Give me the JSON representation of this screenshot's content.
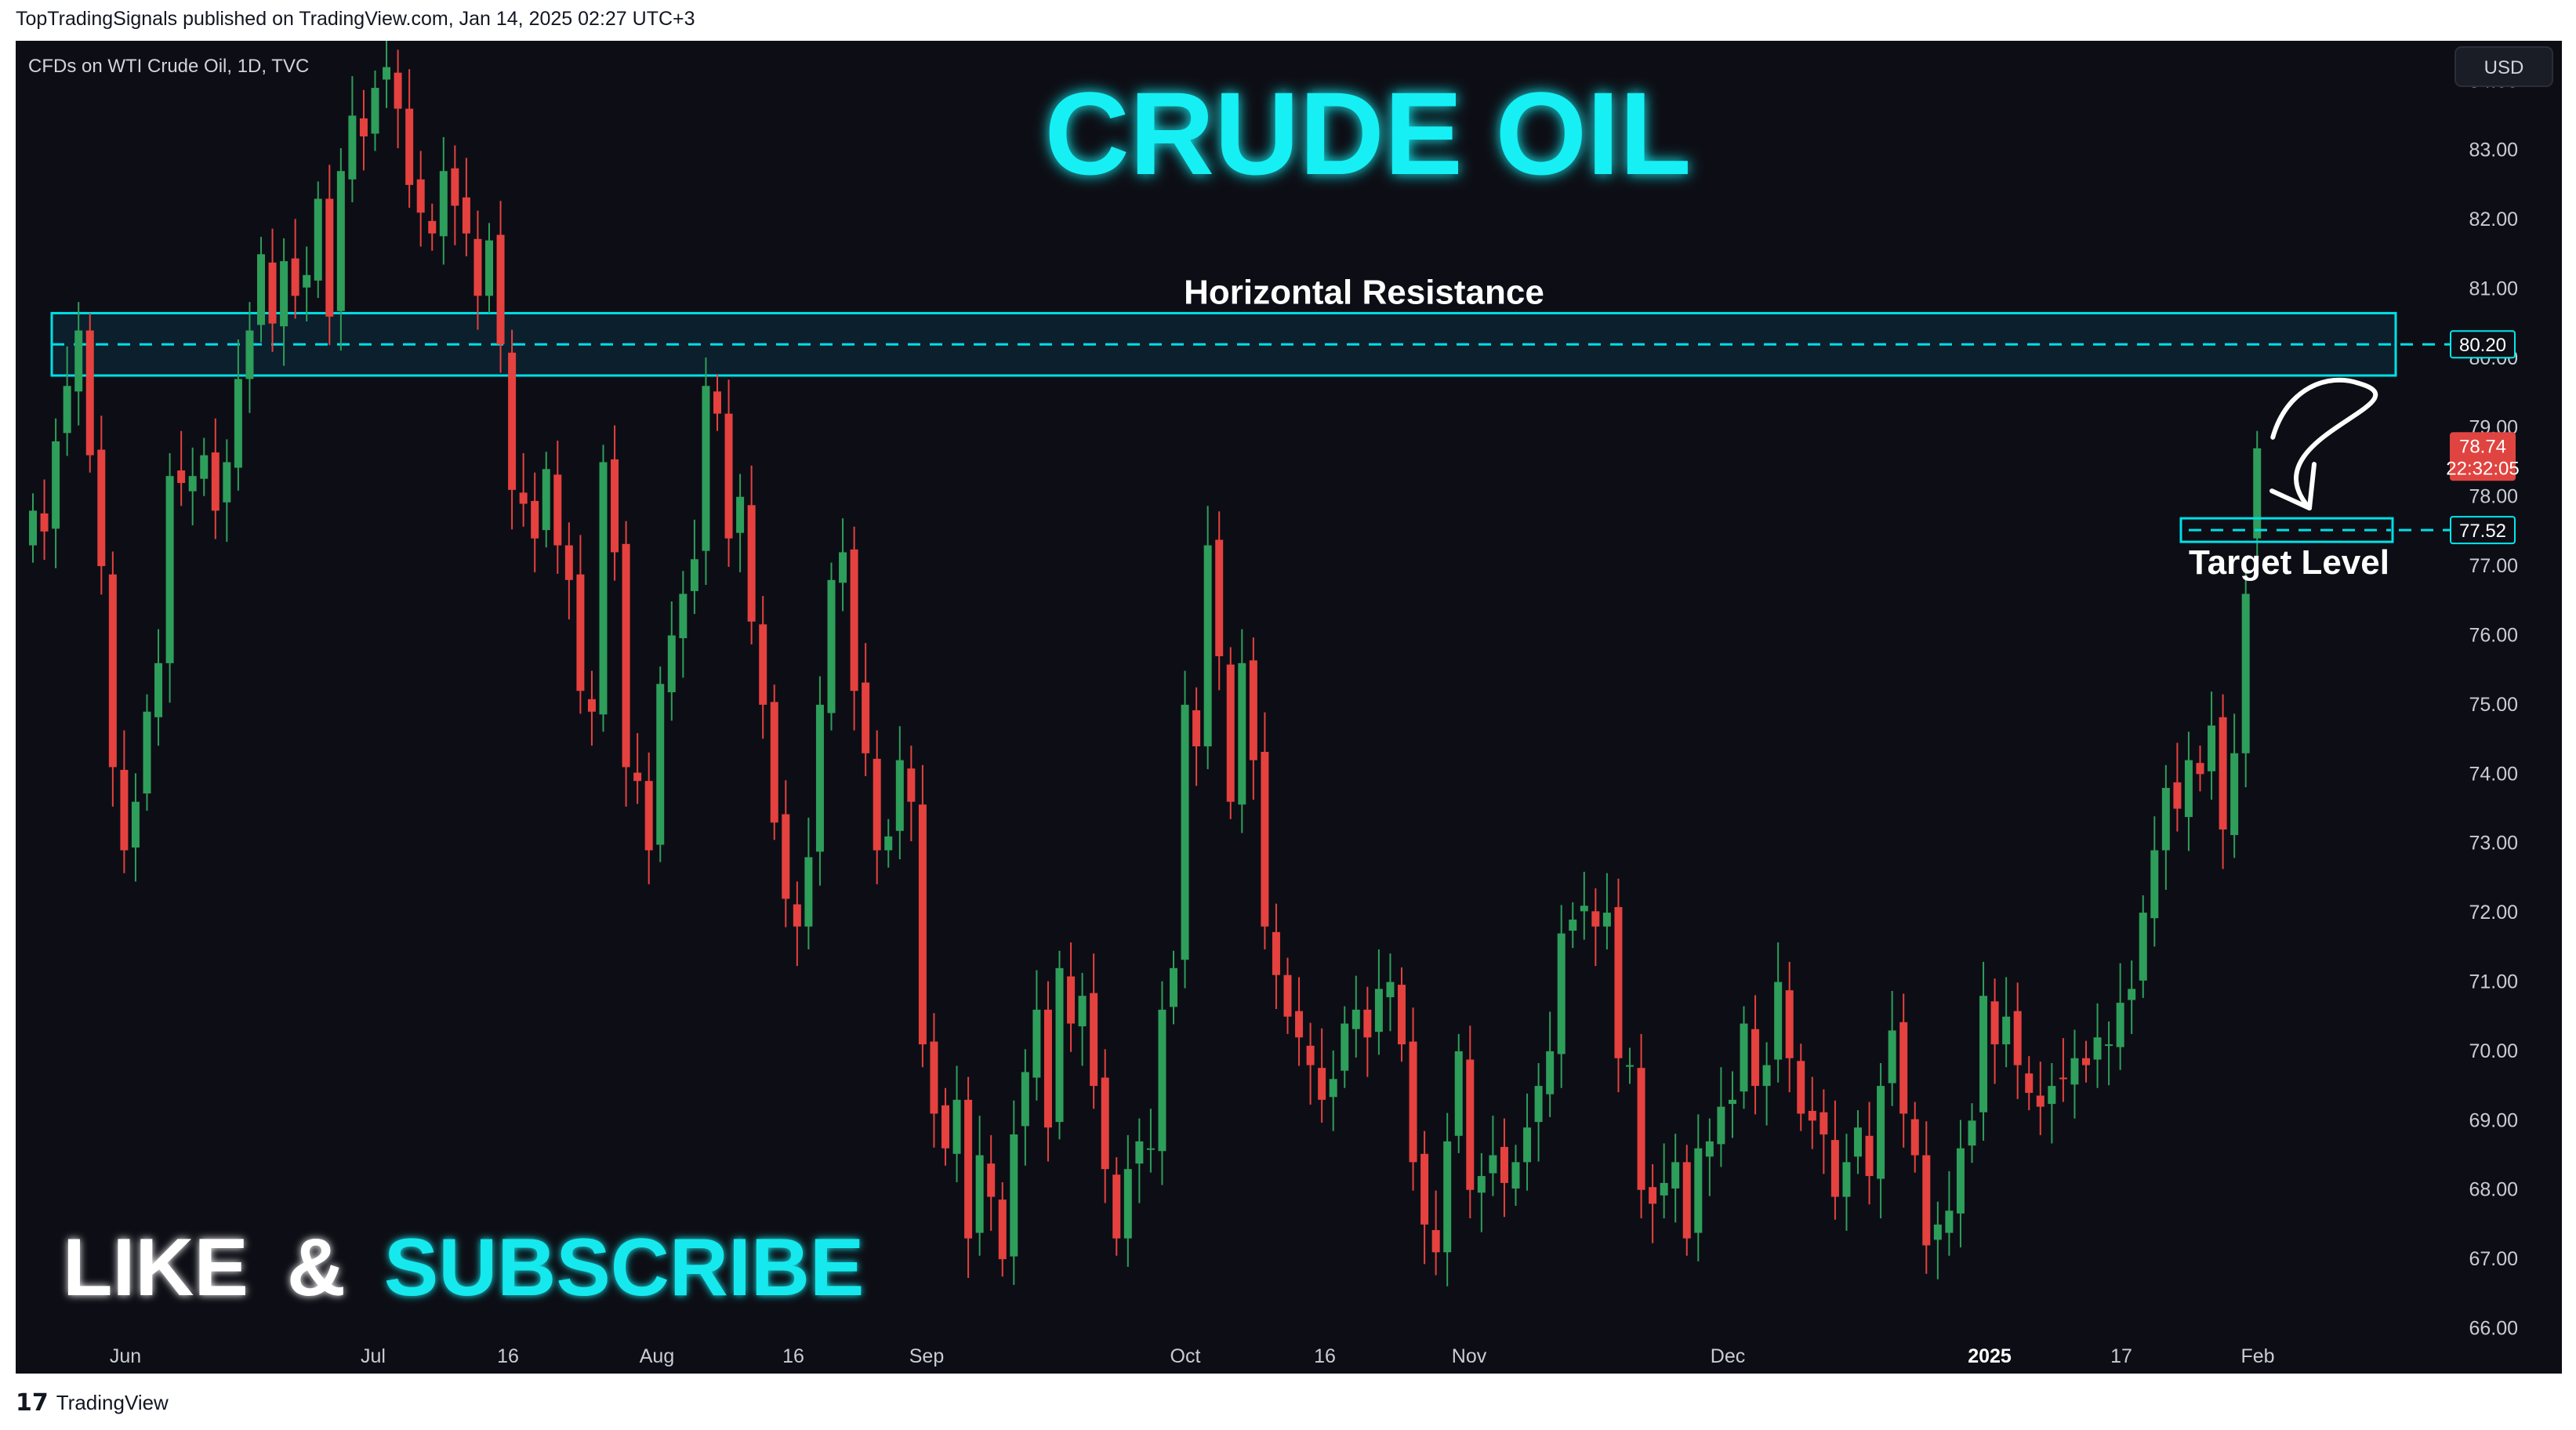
{
  "header": {
    "published_by": "TopTradingSignals published on TradingView.com, Jan 14, 2025 02:27 UTC+3"
  },
  "footer": {
    "brand_logo": "17",
    "brand": "TradingView"
  },
  "colors": {
    "background": "#0d0e15",
    "up": "#2e9e5b",
    "down": "#e5413f",
    "accent": "#00e8ee",
    "axis_text": "#c9ccd6",
    "price_label": "#e04440"
  },
  "chart_data": {
    "type": "candlestick",
    "symbol_label": "CFDs on WTI Crude Oil, 1D, TVC",
    "title": "CRUDE OIL",
    "currency": "USD",
    "ylim": [
      65.5,
      84.5
    ],
    "y_ticks": [
      "84.00",
      "83.00",
      "82.00",
      "81.00",
      "80.00",
      "79.00",
      "78.00",
      "77.00",
      "76.00",
      "75.00",
      "74.00",
      "73.00",
      "72.00",
      "71.00",
      "70.00",
      "69.00",
      "68.00",
      "67.00",
      "66.00"
    ],
    "x_tick_labels": [
      {
        "label": "Jun",
        "bold": false
      },
      {
        "label": "Jul",
        "bold": false
      },
      {
        "label": "16",
        "bold": false
      },
      {
        "label": "Aug",
        "bold": false
      },
      {
        "label": "16",
        "bold": false
      },
      {
        "label": "Sep",
        "bold": false
      },
      {
        "label": "Oct",
        "bold": false
      },
      {
        "label": "16",
        "bold": false
      },
      {
        "label": "Nov",
        "bold": false
      },
      {
        "label": "Dec",
        "bold": false
      },
      {
        "label": "2025",
        "bold": true
      },
      {
        "label": "17",
        "bold": false
      },
      {
        "label": "Feb",
        "bold": false
      }
    ],
    "closes": [
      77.8,
      77.5,
      78.8,
      79.6,
      80.4,
      78.6,
      77.0,
      74.1,
      72.9,
      73.6,
      74.9,
      75.6,
      78.3,
      78.2,
      78.3,
      78.6,
      77.8,
      78.5,
      79.7,
      80.4,
      81.5,
      80.5,
      81.4,
      80.9,
      81.2,
      82.3,
      80.6,
      82.7,
      83.5,
      83.2,
      83.9,
      84.2,
      83.6,
      82.5,
      82.1,
      81.8,
      82.7,
      82.2,
      81.8,
      80.9,
      81.7,
      80.2,
      78.1,
      77.9,
      77.4,
      78.4,
      77.3,
      76.8,
      75.2,
      74.9,
      78.5,
      77.2,
      74.1,
      73.9,
      72.9,
      75.3,
      76.0,
      76.6,
      77.1,
      79.6,
      79.2,
      77.4,
      78.0,
      76.2,
      75.0,
      73.3,
      72.2,
      71.8,
      72.8,
      75.0,
      76.8,
      77.2,
      75.2,
      74.3,
      72.9,
      73.1,
      74.2,
      73.6,
      70.1,
      69.1,
      68.6,
      69.3,
      67.3,
      68.5,
      67.9,
      67.0,
      68.8,
      69.7,
      70.6,
      68.9,
      71.2,
      70.4,
      70.8,
      69.5,
      68.3,
      67.3,
      68.3,
      68.7,
      68.6,
      70.6,
      71.2,
      75.0,
      74.4,
      77.3,
      75.7,
      73.6,
      75.6,
      74.2,
      71.8,
      71.1,
      70.5,
      70.2,
      69.8,
      69.3,
      69.6,
      70.4,
      70.6,
      70.2,
      70.9,
      71.0,
      70.1,
      68.4,
      67.5,
      67.1,
      68.7,
      70.0,
      68.0,
      68.2,
      68.5,
      68.1,
      68.4,
      68.9,
      69.5,
      70.0,
      71.7,
      71.9,
      72.1,
      71.8,
      72.0,
      69.9,
      69.8,
      68.0,
      67.8,
      68.1,
      68.4,
      67.3,
      68.6,
      68.7,
      69.2,
      69.3,
      70.4,
      69.5,
      69.8,
      71.0,
      69.9,
      69.1,
      69.0,
      68.8,
      67.9,
      68.4,
      68.9,
      68.2,
      69.5,
      70.3,
      69.1,
      68.5,
      67.2,
      67.5,
      67.7,
      68.6,
      69.0,
      70.8,
      70.1,
      70.5,
      69.8,
      69.4,
      69.2,
      69.5,
      69.6,
      69.9,
      69.8,
      70.2,
      70.1,
      70.7,
      70.9,
      72.0,
      72.9,
      73.8,
      73.5,
      74.2,
      74.0,
      74.7,
      73.2,
      74.3,
      76.6,
      78.7
    ],
    "last_price": "78.74",
    "countdown": "22:32:05",
    "resistance": {
      "label": "Horizontal Resistance",
      "level": 80.2,
      "zone": [
        79.75,
        80.65
      ],
      "price_tag": "80.20"
    },
    "target": {
      "label": "Target Level",
      "level": 77.52,
      "price_tag": "77.52"
    }
  },
  "promo": {
    "like": "LIKE",
    "amp": "&",
    "subscribe": "SUBSCRIBE"
  }
}
